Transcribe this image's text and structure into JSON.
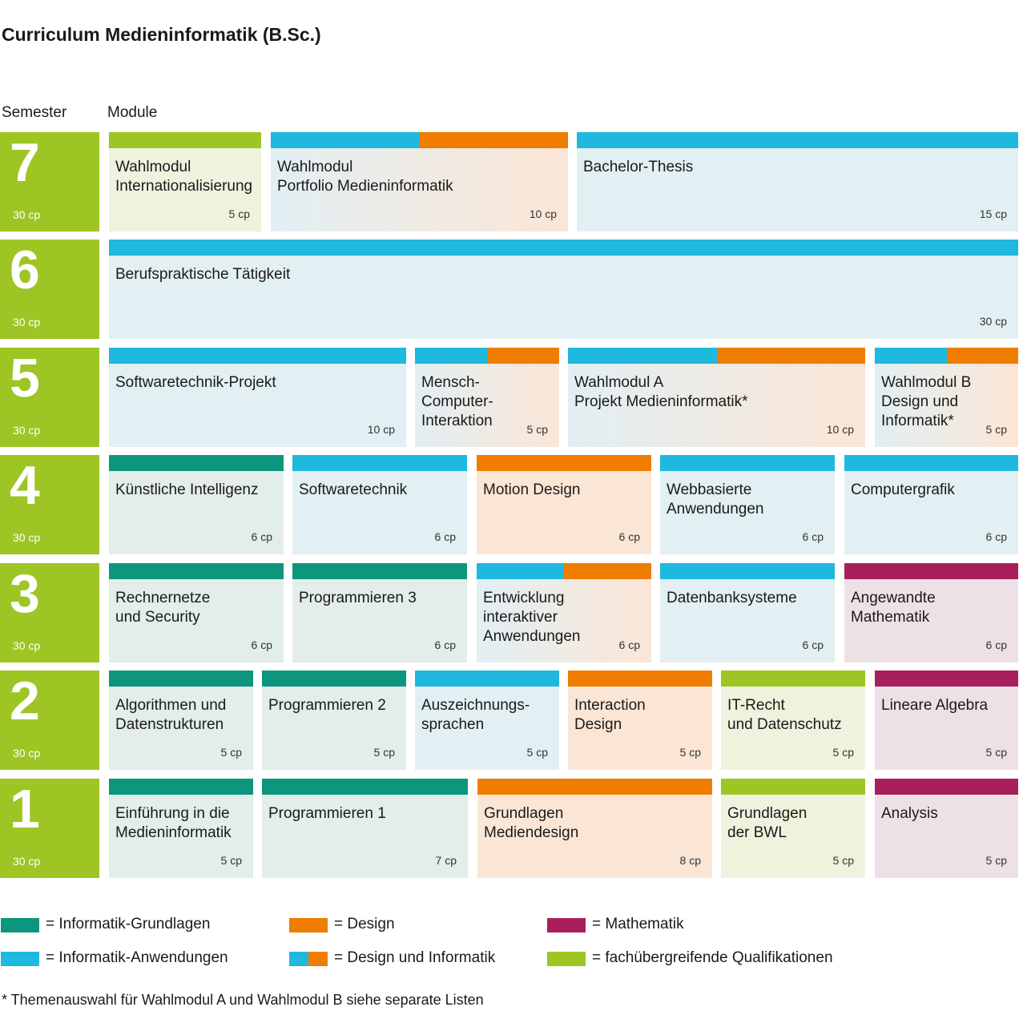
{
  "title": "Curriculum Medieninformatik (B.Sc.)",
  "headers": {
    "semester": "Semester",
    "module": "Module"
  },
  "colors": {
    "grundlagen": {
      "bar": "#0c967d",
      "bg": "#e3ede9"
    },
    "anwendungen": {
      "bar": "#1fb8de",
      "bg": "#e2eff3"
    },
    "design": {
      "bar": "#ef7d00",
      "bg": "#fbe6d6"
    },
    "mathematik": {
      "bar": "#a91f5c",
      "bg": "#ede1e7"
    },
    "fachuebergreifend": {
      "bar": "#9dc524",
      "bg": "#eef3dd"
    },
    "semester": "#9dc524"
  },
  "semesters": [
    {
      "number": "7",
      "cp": "30 cp",
      "modules": [
        {
          "name": "Wahlmodul\nInternationalisierung",
          "cp": "5 cp",
          "category": "fachuebergreifend"
        },
        {
          "name": "Wahlmodul\nPortfolio Medieninformatik",
          "cp": "10 cp",
          "category": "design-informatik"
        },
        {
          "name": "Bachelor-Thesis",
          "cp": "15 cp",
          "category": "anwendungen"
        }
      ]
    },
    {
      "number": "6",
      "cp": "30 cp",
      "modules": [
        {
          "name": "Berufspraktische Tätigkeit",
          "cp": "30 cp",
          "category": "anwendungen"
        }
      ]
    },
    {
      "number": "5",
      "cp": "30 cp",
      "modules": [
        {
          "name": "Softwaretechnik-Projekt",
          "cp": "10 cp",
          "category": "anwendungen"
        },
        {
          "name": "Mensch-\nComputer-\nInteraktion",
          "cp": "5 cp",
          "category": "design-informatik"
        },
        {
          "name": "Wahlmodul A\nProjekt Medieninformatik*",
          "cp": "10 cp",
          "category": "design-informatik"
        },
        {
          "name": "Wahlmodul B\nDesign und\nInformatik*",
          "cp": "5 cp",
          "category": "design-informatik"
        }
      ]
    },
    {
      "number": "4",
      "cp": "30 cp",
      "modules": [
        {
          "name": "Künstliche Intelligenz",
          "cp": "6 cp",
          "category": "grundlagen"
        },
        {
          "name": "Softwaretechnik",
          "cp": "6 cp",
          "category": "anwendungen"
        },
        {
          "name": "Motion Design",
          "cp": "6 cp",
          "category": "design"
        },
        {
          "name": "Webbasierte\nAnwendungen",
          "cp": "6 cp",
          "category": "anwendungen"
        },
        {
          "name": "Computergrafik",
          "cp": "6 cp",
          "category": "anwendungen"
        }
      ]
    },
    {
      "number": "3",
      "cp": "30 cp",
      "modules": [
        {
          "name": "Rechnernetze\nund Security",
          "cp": "6 cp",
          "category": "grundlagen"
        },
        {
          "name": "Programmieren 3",
          "cp": "6 cp",
          "category": "grundlagen"
        },
        {
          "name": "Entwicklung\ninteraktiver\nAnwendungen",
          "cp": "6 cp",
          "category": "design-informatik"
        },
        {
          "name": "Datenbanksysteme",
          "cp": "6 cp",
          "category": "anwendungen"
        },
        {
          "name": "Angewandte\nMathematik",
          "cp": "6 cp",
          "category": "mathematik"
        }
      ]
    },
    {
      "number": "2",
      "cp": "30 cp",
      "modules": [
        {
          "name": "Algorithmen und\nDatenstrukturen",
          "cp": "5 cp",
          "category": "grundlagen"
        },
        {
          "name": "Programmieren 2",
          "cp": "5 cp",
          "category": "grundlagen"
        },
        {
          "name": "Auszeichnungs-\nsprachen",
          "cp": "5 cp",
          "category": "anwendungen"
        },
        {
          "name": "Interaction\nDesign",
          "cp": "5 cp",
          "category": "design"
        },
        {
          "name": "IT-Recht\nund Datenschutz",
          "cp": "5 cp",
          "category": "fachuebergreifend"
        },
        {
          "name": "Lineare Algebra",
          "cp": "5 cp",
          "category": "mathematik"
        }
      ]
    },
    {
      "number": "1",
      "cp": "30 cp",
      "modules": [
        {
          "name": "Einführung in die\nMedieninformatik",
          "cp": "5 cp",
          "category": "grundlagen"
        },
        {
          "name": "Programmieren 1",
          "cp": "7 cp",
          "category": "grundlagen"
        },
        {
          "name": "Grundlagen\nMediendesign",
          "cp": "8 cp",
          "category": "design"
        },
        {
          "name": "Grundlagen\nder BWL",
          "cp": "5 cp",
          "category": "fachuebergreifend"
        },
        {
          "name": "Analysis",
          "cp": "5 cp",
          "category": "mathematik"
        }
      ]
    }
  ],
  "legend": [
    {
      "label": "= Informatik-Grundlagen",
      "category": "grundlagen"
    },
    {
      "label": "= Design",
      "category": "design"
    },
    {
      "label": "= Mathematik",
      "category": "mathematik"
    },
    {
      "label": "= Informatik-Anwendungen",
      "category": "anwendungen"
    },
    {
      "label": "= Design und Informatik",
      "category": "design-informatik"
    },
    {
      "label": "= fachübergreifende Qualifikationen",
      "category": "fachuebergreifend"
    }
  ],
  "footnote": "* Themenauswahl für Wahlmodul A und Wahlmodul B siehe separate Listen"
}
